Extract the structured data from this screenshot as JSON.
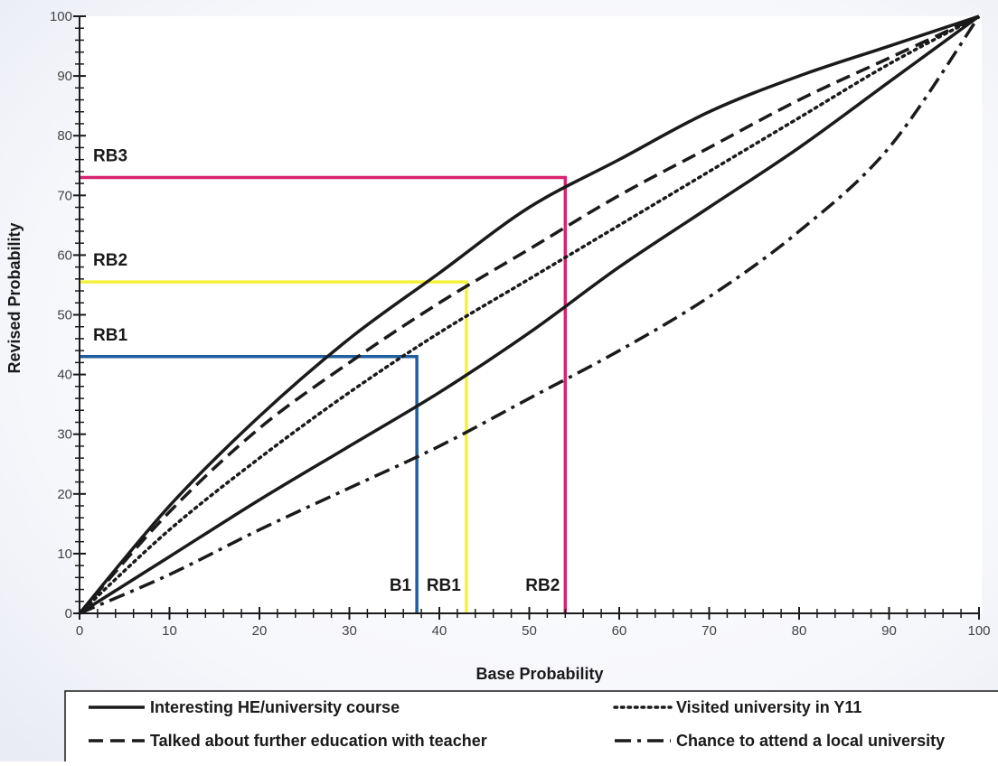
{
  "chart_data": {
    "type": "line",
    "title": "",
    "xlabel": "Base Probability",
    "ylabel": "Revised Probability",
    "xlim": [
      0,
      100
    ],
    "ylim": [
      0,
      100
    ],
    "x_ticks": [
      0,
      10,
      20,
      30,
      40,
      50,
      60,
      70,
      80,
      90,
      100
    ],
    "y_ticks": [
      0,
      10,
      20,
      30,
      40,
      50,
      60,
      70,
      80,
      90,
      100
    ],
    "grid": false,
    "legend_position": "bottom",
    "series": [
      {
        "name": "Interesting HE/university course",
        "style": "solid",
        "color": "#1a1a1a",
        "curves": [
          {
            "x": [
              0,
              10,
              20,
              30,
              40,
              50,
              60,
              70,
              80,
              90,
              100
            ],
            "y": [
              0,
              18,
              33,
              46,
              57,
              68,
              76,
              84,
              90,
              95,
              100
            ]
          },
          {
            "x": [
              0,
              10,
              20,
              30,
              40,
              50,
              60,
              70,
              80,
              90,
              100
            ],
            "y": [
              0,
              9.5,
              19,
              28,
              37,
              47,
              58,
              68,
              78,
              89,
              100
            ]
          }
        ]
      },
      {
        "name": "Talked about further education with teacher",
        "style": "dashed",
        "color": "#1a1a1a",
        "x": [
          0,
          10,
          20,
          30,
          40,
          50,
          60,
          70,
          80,
          90,
          100
        ],
        "y": [
          0,
          17,
          31,
          42,
          52,
          61,
          70,
          78,
          86,
          93,
          100
        ]
      },
      {
        "name": "Visited university in Y11",
        "style": "dotted",
        "color": "#1a1a1a",
        "x": [
          0,
          10,
          20,
          30,
          40,
          50,
          60,
          70,
          80,
          90,
          100
        ],
        "y": [
          0,
          14,
          26,
          37,
          47,
          56,
          65,
          74,
          83,
          92,
          100
        ]
      },
      {
        "name": "Chance to attend a local university",
        "style": "dashdot",
        "color": "#1a1a1a",
        "x": [
          0,
          10,
          20,
          30,
          40,
          50,
          60,
          70,
          80,
          90,
          100
        ],
        "y": [
          0,
          6.5,
          14,
          21,
          28,
          36,
          44,
          53,
          64,
          78,
          100
        ]
      }
    ],
    "annotations": [
      {
        "label": "RB1",
        "x": 37.5,
        "y": 43,
        "color": "#1f5fa0",
        "label_at_x": "B1"
      },
      {
        "label": "RB2",
        "x": 43,
        "y": 55.5,
        "color": "#f5f03a",
        "label_at_x": "RB1"
      },
      {
        "label": "RB3",
        "x": 54,
        "y": 73,
        "color": "#d8236e",
        "label_at_x": "RB2"
      }
    ]
  }
}
